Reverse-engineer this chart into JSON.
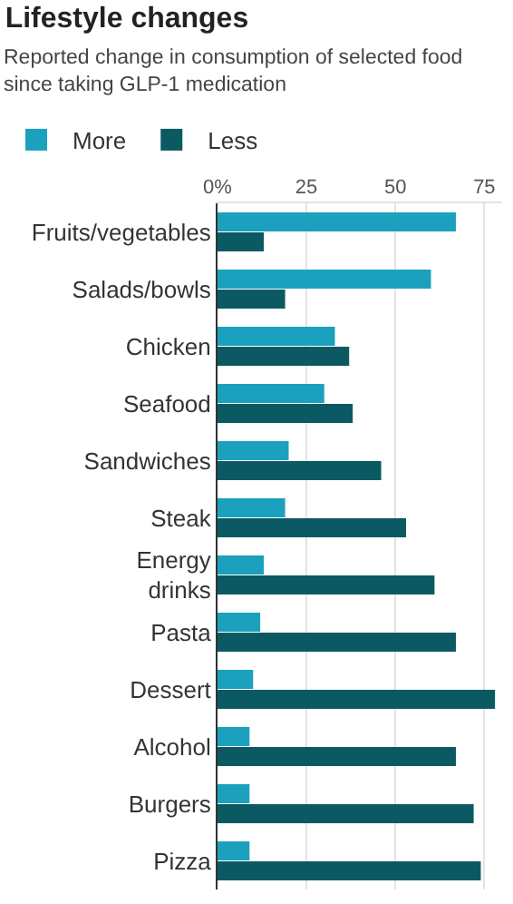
{
  "chart_data": {
    "type": "bar",
    "orientation": "horizontal",
    "title": "Lifestyle changes",
    "subtitle": "Reported change in consumption of selected food since taking GLP-1 medication",
    "categories": [
      "Fruits/vegetables",
      "Salads/bowls",
      "Chicken",
      "Seafood",
      "Sandwiches",
      "Steak",
      "Energy\ndrinks",
      "Pasta",
      "Dessert",
      "Alcohol",
      "Burgers",
      "Pizza"
    ],
    "series": [
      {
        "name": "More",
        "color": "#1ba1bd",
        "values": [
          67,
          60,
          33,
          30,
          20,
          19,
          13,
          12,
          10,
          9,
          9,
          9
        ]
      },
      {
        "name": "Less",
        "color": "#0b5a63",
        "values": [
          13,
          19,
          37,
          38,
          46,
          53,
          61,
          67,
          78,
          67,
          72,
          74
        ]
      }
    ],
    "xlim": [
      0,
      80
    ],
    "xticks": [
      {
        "value": 0,
        "label": "0%"
      },
      25,
      50,
      75
    ],
    "grid": "x",
    "legend": "top left"
  }
}
